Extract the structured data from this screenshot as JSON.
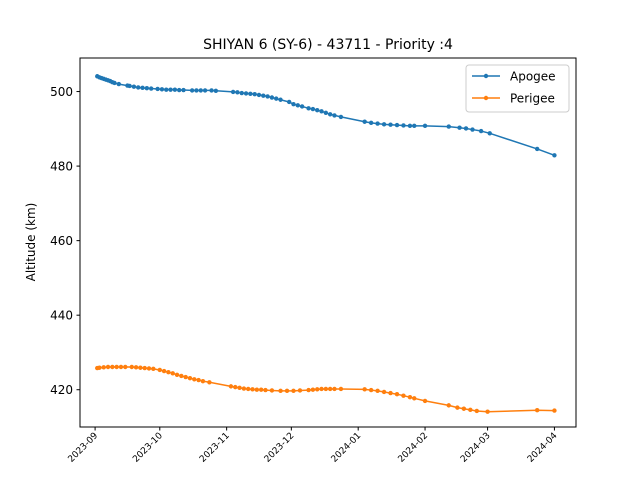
{
  "chart_data": {
    "type": "line",
    "title": "SHIYAN 6 (SY-6) - 43711 - Priority :4",
    "xlabel": "",
    "ylabel": "Altitude (km)",
    "xlim": [
      "2023-08-25",
      "2024-04-11"
    ],
    "ylim": [
      410,
      509
    ],
    "yticks": [
      420,
      440,
      460,
      480,
      500
    ],
    "xticks": [
      "2023-09-01",
      "2023-10-01",
      "2023-11-01",
      "2023-12-01",
      "2024-01-01",
      "2024-02-01",
      "2024-03-01",
      "2024-04-01"
    ],
    "xtick_labels": [
      "2023-09",
      "2023-10",
      "2023-11",
      "2023-12",
      "2024-01",
      "2024-02",
      "2024-03",
      "2024-04"
    ],
    "grid": false,
    "legend_position": "top-right",
    "series": [
      {
        "name": "Apogee",
        "color": "#1f77b4",
        "points": [
          [
            "2023-09-02",
            504.1
          ],
          [
            "2023-09-03",
            503.8
          ],
          [
            "2023-09-04",
            503.6
          ],
          [
            "2023-09-05",
            503.4
          ],
          [
            "2023-09-06",
            503.2
          ],
          [
            "2023-09-07",
            503.0
          ],
          [
            "2023-09-08",
            502.8
          ],
          [
            "2023-09-09",
            502.5
          ],
          [
            "2023-09-10",
            502.3
          ],
          [
            "2023-09-12",
            502.0
          ],
          [
            "2023-09-16",
            501.6
          ],
          [
            "2023-09-17",
            501.5
          ],
          [
            "2023-09-19",
            501.3
          ],
          [
            "2023-09-21",
            501.1
          ],
          [
            "2023-09-23",
            501.0
          ],
          [
            "2023-09-25",
            500.9
          ],
          [
            "2023-09-27",
            500.8
          ],
          [
            "2023-09-30",
            500.7
          ],
          [
            "2023-10-02",
            500.6
          ],
          [
            "2023-10-04",
            500.5
          ],
          [
            "2023-10-06",
            500.5
          ],
          [
            "2023-10-08",
            500.5
          ],
          [
            "2023-10-10",
            500.4
          ],
          [
            "2023-10-12",
            500.4
          ],
          [
            "2023-10-16",
            500.3
          ],
          [
            "2023-10-18",
            500.3
          ],
          [
            "2023-10-20",
            500.3
          ],
          [
            "2023-10-22",
            500.3
          ],
          [
            "2023-10-25",
            500.3
          ],
          [
            "2023-10-27",
            500.2
          ],
          [
            "2023-11-04",
            499.9
          ],
          [
            "2023-11-06",
            499.8
          ],
          [
            "2023-11-08",
            499.6
          ],
          [
            "2023-11-10",
            499.5
          ],
          [
            "2023-11-12",
            499.4
          ],
          [
            "2023-11-14",
            499.3
          ],
          [
            "2023-11-16",
            499.1
          ],
          [
            "2023-11-18",
            498.9
          ],
          [
            "2023-11-20",
            498.7
          ],
          [
            "2023-11-22",
            498.4
          ],
          [
            "2023-11-24",
            498.1
          ],
          [
            "2023-11-26",
            497.8
          ],
          [
            "2023-11-30",
            497.2
          ],
          [
            "2023-12-02",
            496.6
          ],
          [
            "2023-12-04",
            496.3
          ],
          [
            "2023-12-06",
            496.0
          ],
          [
            "2023-12-09",
            495.5
          ],
          [
            "2023-12-11",
            495.3
          ],
          [
            "2023-12-13",
            495.0
          ],
          [
            "2023-12-15",
            494.7
          ],
          [
            "2023-12-17",
            494.3
          ],
          [
            "2023-12-19",
            493.9
          ],
          [
            "2023-12-21",
            493.6
          ],
          [
            "2023-12-24",
            493.2
          ],
          [
            "2024-01-04",
            491.9
          ],
          [
            "2024-01-07",
            491.6
          ],
          [
            "2024-01-10",
            491.4
          ],
          [
            "2024-01-13",
            491.2
          ],
          [
            "2024-01-16",
            491.1
          ],
          [
            "2024-01-19",
            491.0
          ],
          [
            "2024-01-22",
            490.9
          ],
          [
            "2024-01-25",
            490.8
          ],
          [
            "2024-01-27",
            490.8
          ],
          [
            "2024-02-01",
            490.8
          ],
          [
            "2024-02-12",
            490.6
          ],
          [
            "2024-02-17",
            490.3
          ],
          [
            "2024-02-20",
            490.1
          ],
          [
            "2024-02-23",
            489.8
          ],
          [
            "2024-02-27",
            489.4
          ],
          [
            "2024-03-02",
            488.8
          ],
          [
            "2024-03-24",
            484.6
          ],
          [
            "2024-04-01",
            482.9
          ]
        ]
      },
      {
        "name": "Perigee",
        "color": "#ff7f0e",
        "points": [
          [
            "2023-09-02",
            425.8
          ],
          [
            "2023-09-03",
            425.9
          ],
          [
            "2023-09-05",
            426.0
          ],
          [
            "2023-09-07",
            426.1
          ],
          [
            "2023-09-09",
            426.1
          ],
          [
            "2023-09-11",
            426.1
          ],
          [
            "2023-09-13",
            426.1
          ],
          [
            "2023-09-15",
            426.1
          ],
          [
            "2023-09-18",
            426.1
          ],
          [
            "2023-09-20",
            426.0
          ],
          [
            "2023-09-22",
            425.9
          ],
          [
            "2023-09-24",
            425.8
          ],
          [
            "2023-09-26",
            425.7
          ],
          [
            "2023-09-28",
            425.6
          ],
          [
            "2023-10-01",
            425.3
          ],
          [
            "2023-10-03",
            425.0
          ],
          [
            "2023-10-05",
            424.7
          ],
          [
            "2023-10-07",
            424.4
          ],
          [
            "2023-10-09",
            424.0
          ],
          [
            "2023-10-11",
            423.7
          ],
          [
            "2023-10-13",
            423.4
          ],
          [
            "2023-10-15",
            423.1
          ],
          [
            "2023-10-17",
            422.8
          ],
          [
            "2023-10-19",
            422.6
          ],
          [
            "2023-10-21",
            422.3
          ],
          [
            "2023-10-24",
            422.0
          ],
          [
            "2023-11-03",
            420.9
          ],
          [
            "2023-11-05",
            420.7
          ],
          [
            "2023-11-07",
            420.5
          ],
          [
            "2023-11-09",
            420.3
          ],
          [
            "2023-11-11",
            420.2
          ],
          [
            "2023-11-13",
            420.1
          ],
          [
            "2023-11-15",
            420.0
          ],
          [
            "2023-11-17",
            420.0
          ],
          [
            "2023-11-19",
            419.9
          ],
          [
            "2023-11-22",
            419.8
          ],
          [
            "2023-11-26",
            419.7
          ],
          [
            "2023-11-29",
            419.7
          ],
          [
            "2023-12-02",
            419.7
          ],
          [
            "2023-12-05",
            419.8
          ],
          [
            "2023-12-09",
            419.9
          ],
          [
            "2023-12-11",
            420.0
          ],
          [
            "2023-12-13",
            420.1
          ],
          [
            "2023-12-15",
            420.2
          ],
          [
            "2023-12-17",
            420.2
          ],
          [
            "2023-12-19",
            420.2
          ],
          [
            "2023-12-21",
            420.2
          ],
          [
            "2023-12-24",
            420.2
          ],
          [
            "2024-01-04",
            420.1
          ],
          [
            "2024-01-07",
            419.9
          ],
          [
            "2024-01-10",
            419.7
          ],
          [
            "2024-01-13",
            419.4
          ],
          [
            "2024-01-16",
            419.1
          ],
          [
            "2024-01-19",
            418.8
          ],
          [
            "2024-01-22",
            418.4
          ],
          [
            "2024-01-25",
            418.0
          ],
          [
            "2024-01-27",
            417.7
          ],
          [
            "2024-02-01",
            417.0
          ],
          [
            "2024-02-12",
            415.8
          ],
          [
            "2024-02-16",
            415.2
          ],
          [
            "2024-02-19",
            414.9
          ],
          [
            "2024-02-22",
            414.6
          ],
          [
            "2024-02-25",
            414.3
          ],
          [
            "2024-03-01",
            414.1
          ],
          [
            "2024-03-24",
            414.5
          ],
          [
            "2024-04-01",
            414.4
          ]
        ]
      }
    ]
  }
}
